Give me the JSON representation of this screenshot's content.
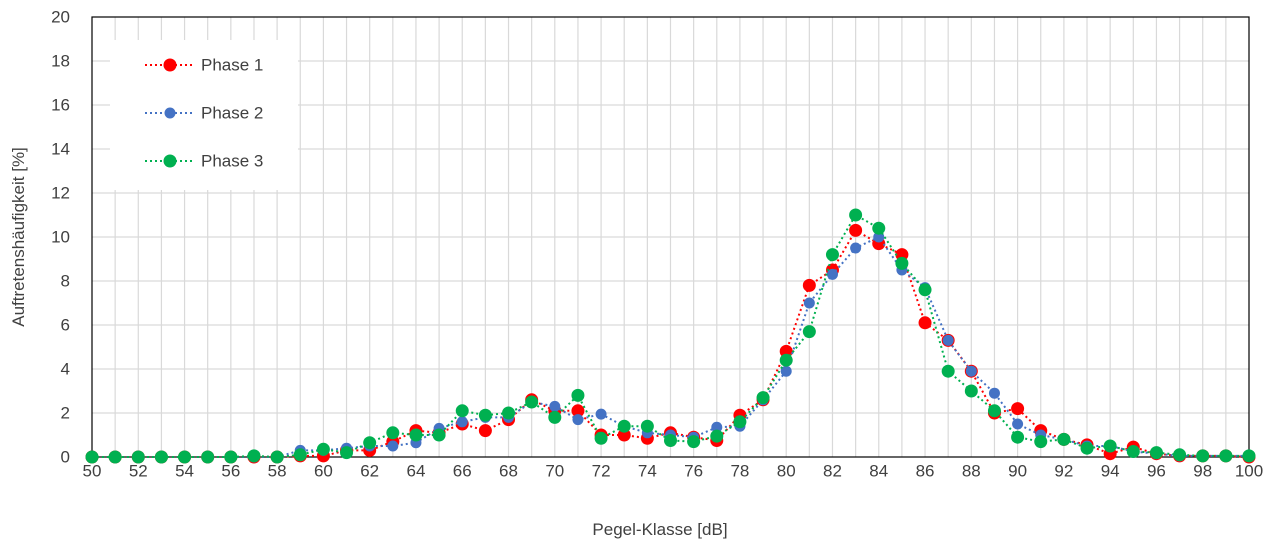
{
  "chart_data": {
    "type": "line",
    "title": "",
    "xlabel": "Pegel-Klasse [dB]",
    "ylabel": "Auftretenshäufigkeit [%]",
    "xlim": [
      50,
      100
    ],
    "ylim": [
      0,
      20
    ],
    "x_ticks": [
      "50",
      "52",
      "54",
      "56",
      "58",
      "60",
      "62",
      "64",
      "66",
      "68",
      "70",
      "72",
      "74",
      "76",
      "78",
      "80",
      "82",
      "84",
      "86",
      "88",
      "90",
      "92",
      "94",
      "96",
      "98",
      "100"
    ],
    "y_ticks": [
      "0",
      "2",
      "4",
      "6",
      "8",
      "10",
      "12",
      "14",
      "16",
      "18",
      "20"
    ],
    "grid": true,
    "legend_position": "top-left",
    "x": [
      50,
      51,
      52,
      53,
      54,
      55,
      56,
      57,
      58,
      59,
      60,
      61,
      62,
      63,
      64,
      65,
      66,
      67,
      68,
      69,
      70,
      71,
      72,
      73,
      74,
      75,
      76,
      77,
      78,
      79,
      80,
      81,
      82,
      83,
      84,
      85,
      86,
      87,
      88,
      89,
      90,
      91,
      92,
      93,
      94,
      95,
      96,
      97,
      98,
      99,
      100
    ],
    "series": [
      {
        "name": "Phase 1",
        "color": "#ff0000",
        "marker_size": "large",
        "line_style": "dotted",
        "values": [
          0,
          0,
          0,
          0,
          0,
          0,
          0,
          0,
          0,
          0.05,
          0.05,
          0.3,
          0.3,
          0.7,
          1.2,
          1.1,
          1.5,
          1.2,
          1.7,
          2.6,
          2.1,
          2.1,
          1.0,
          1.0,
          0.85,
          1.1,
          0.9,
          0.75,
          1.9,
          2.6,
          4.8,
          7.8,
          8.5,
          10.3,
          9.7,
          9.2,
          6.1,
          5.3,
          3.9,
          2.0,
          2.2,
          1.2,
          0.8,
          0.55,
          0.15,
          0.45,
          0.15,
          0.05,
          0.05,
          0.05,
          0.0
        ]
      },
      {
        "name": "Phase 2",
        "color": "#4472c4",
        "marker_size": "small",
        "line_style": "dotted",
        "values": [
          0,
          0,
          0,
          0,
          0,
          0,
          0,
          0,
          0,
          0.3,
          0.3,
          0.4,
          0.5,
          0.5,
          0.65,
          1.3,
          1.6,
          1.8,
          1.8,
          2.5,
          2.3,
          1.7,
          1.95,
          1.4,
          1.1,
          1.0,
          0.9,
          1.35,
          1.4,
          2.6,
          3.9,
          7.0,
          8.3,
          9.5,
          10.0,
          8.5,
          7.7,
          5.3,
          3.9,
          2.9,
          1.5,
          1.0,
          0.8,
          0.5,
          0.5,
          0.25,
          0.15,
          0.05,
          0.05,
          0.05,
          0.05
        ]
      },
      {
        "name": "Phase 3",
        "color": "#00b050",
        "marker_size": "large",
        "line_style": "dotted",
        "values": [
          0,
          0,
          0,
          0,
          0,
          0,
          0,
          0.05,
          0,
          0.1,
          0.35,
          0.2,
          0.65,
          1.1,
          1.0,
          1.0,
          2.1,
          1.9,
          2.0,
          2.5,
          1.8,
          2.8,
          0.85,
          1.4,
          1.4,
          0.75,
          0.7,
          0.95,
          1.6,
          2.7,
          4.4,
          5.7,
          9.2,
          11.0,
          10.4,
          8.8,
          7.6,
          3.9,
          3.0,
          2.1,
          0.9,
          0.7,
          0.8,
          0.4,
          0.5,
          0.25,
          0.2,
          0.1,
          0.05,
          0.05,
          0.05
        ]
      }
    ]
  }
}
